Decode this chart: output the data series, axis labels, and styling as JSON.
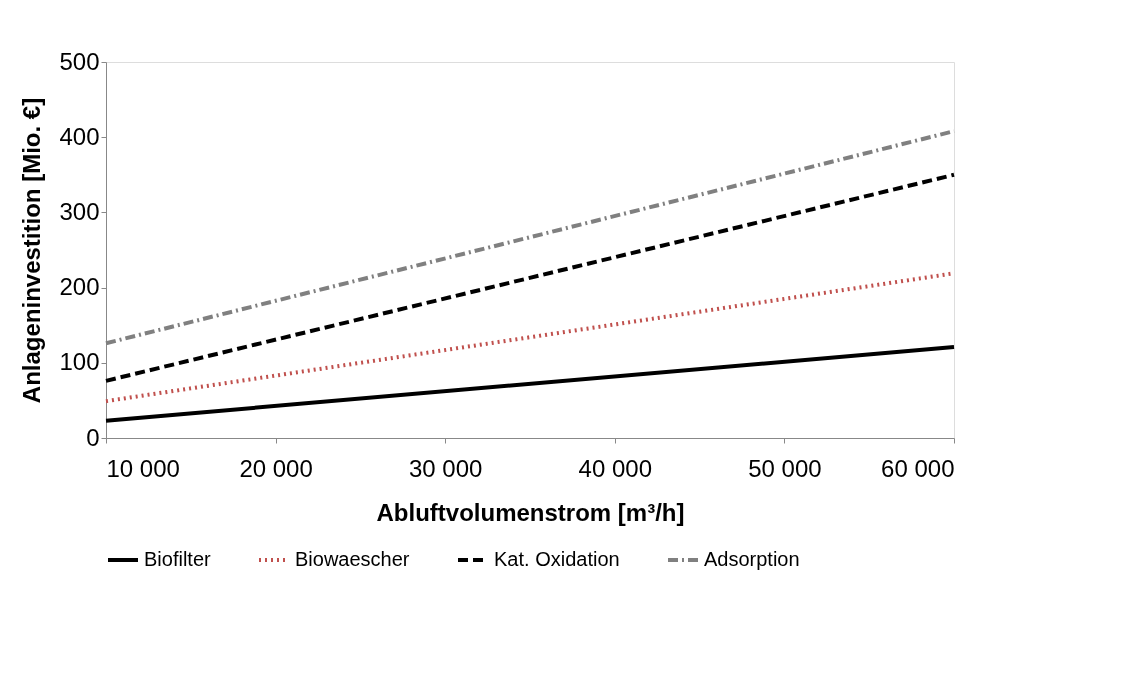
{
  "chart_data": {
    "type": "line",
    "xlabel": "Abluftvolumenstrom [m³/h]",
    "ylabel": "Anlageninvestition [Mio. €]",
    "x": [
      10000,
      60000
    ],
    "series": [
      {
        "name": "Biofilter",
        "color": "#000000",
        "line_style": "solid",
        "values": [
          23,
          121
        ]
      },
      {
        "name": "Biowaescher",
        "color": "#c0504d",
        "line_style": "dotted",
        "values": [
          49,
          219
        ]
      },
      {
        "name": "Kat. Oxidation",
        "color": "#000000",
        "line_style": "dashed",
        "values": [
          76,
          350
        ]
      },
      {
        "name": "Adsorption",
        "color": "#808080",
        "line_style": "dashdot",
        "values": [
          126,
          408
        ]
      }
    ],
    "xlim": [
      10000,
      60000
    ],
    "xticks": [
      {
        "value": 10000,
        "label": "10 000"
      },
      {
        "value": 20000,
        "label": "20 000"
      },
      {
        "value": 30000,
        "label": "30 000"
      },
      {
        "value": 40000,
        "label": "40 000"
      },
      {
        "value": 50000,
        "label": "50 000"
      },
      {
        "value": 60000,
        "label": "60 000"
      }
    ],
    "ylim": [
      0,
      500
    ],
    "yticks": [
      0,
      100,
      200,
      300,
      400,
      500
    ],
    "grid": false,
    "legend": "bottom",
    "marker": "none"
  }
}
